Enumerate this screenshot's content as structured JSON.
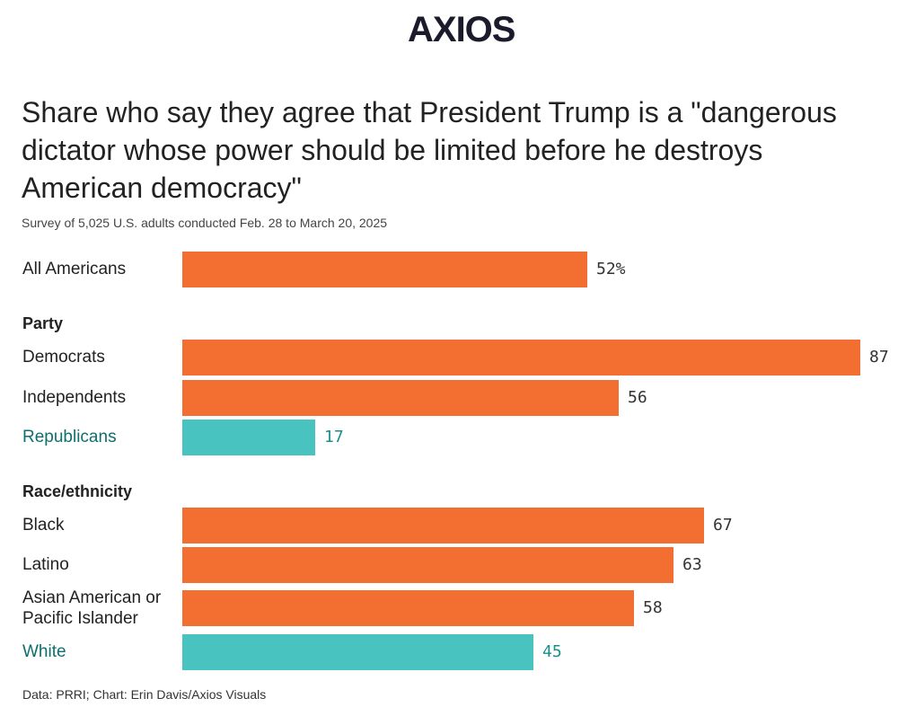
{
  "logo": {
    "text": "AXIOS"
  },
  "chart_data": {
    "type": "bar",
    "title": "Share who say they agree that President Trump is a \"dangerous dictator whose power should be limited before he destroys American democracy\"",
    "subtitle": "Survey of 5,025 U.S. adults conducted Feb. 28 to March 20, 2025",
    "xlim": [
      0,
      87
    ],
    "groups": [
      {
        "name": "",
        "rows": [
          {
            "label": "All Americans",
            "value": 52,
            "value_label": "52%",
            "highlight": false
          }
        ]
      },
      {
        "name": "Party",
        "rows": [
          {
            "label": "Democrats",
            "value": 87,
            "value_label": "87",
            "highlight": false
          },
          {
            "label": "Independents",
            "value": 56,
            "value_label": "56",
            "highlight": false
          },
          {
            "label": "Republicans",
            "value": 17,
            "value_label": "17",
            "highlight": true
          }
        ]
      },
      {
        "name": "Race/ethnicity",
        "rows": [
          {
            "label": "Black",
            "value": 67,
            "value_label": "67",
            "highlight": false
          },
          {
            "label": "Latino",
            "value": 63,
            "value_label": "63",
            "highlight": false
          },
          {
            "label": "Asian American or Pacific Islander",
            "value": 58,
            "value_label": "58",
            "highlight": false
          },
          {
            "label": "White",
            "value": 45,
            "value_label": "45",
            "highlight": true
          }
        ]
      }
    ],
    "colors": {
      "default": "#f26f31",
      "highlight": "#49c3c0"
    },
    "source": "Data: PRRI; Chart: Erin Davis/Axios Visuals"
  }
}
